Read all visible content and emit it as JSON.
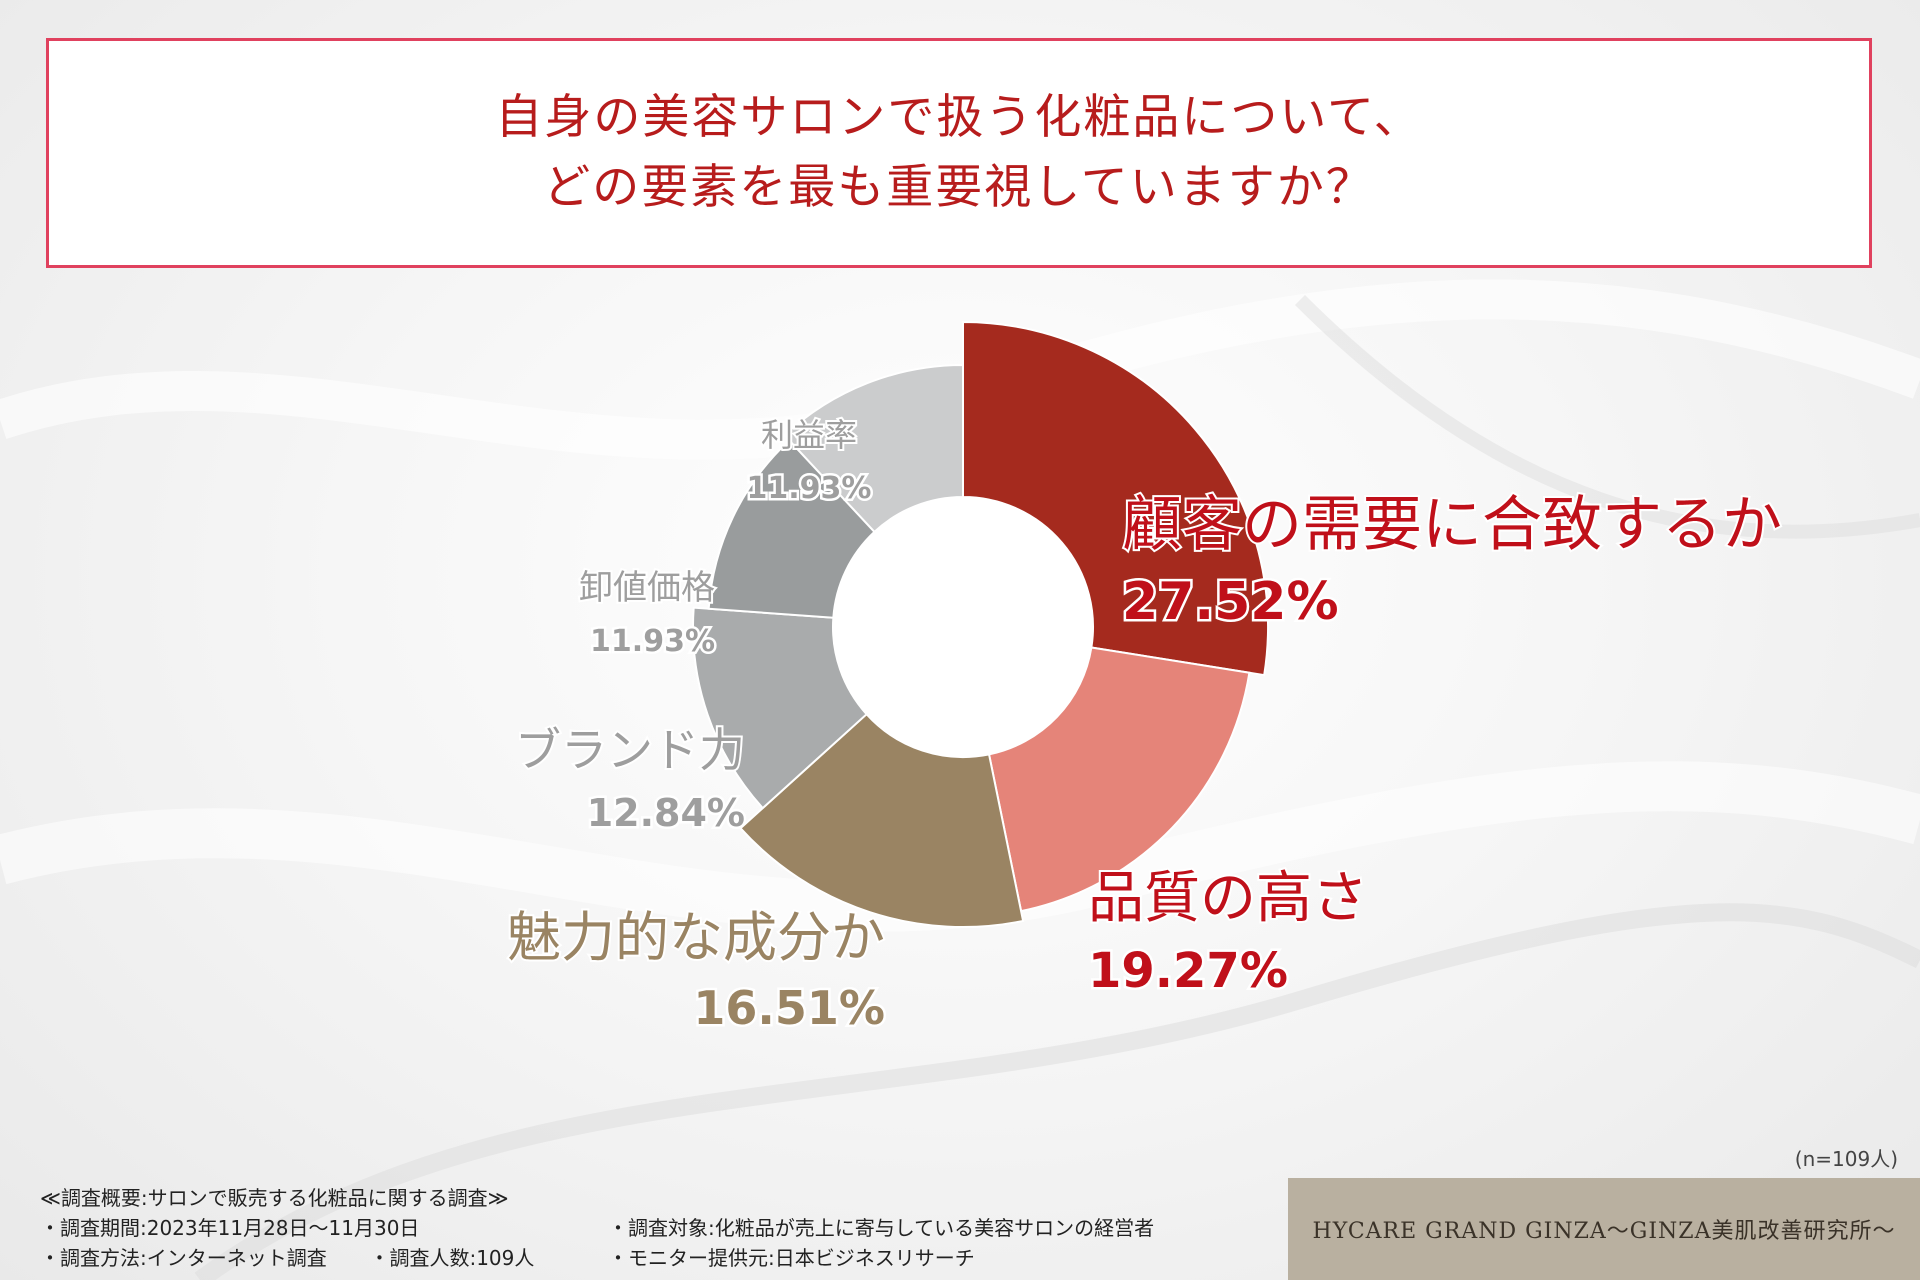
{
  "title": {
    "line1": "自身の美容サロンで扱う化粧品について、",
    "line2": "どの要素を最も重要視していますか？"
  },
  "chart_data": {
    "type": "pie",
    "variant": "donut",
    "unit": "%",
    "slices": [
      {
        "label": "顧客の需要に合致するか",
        "value": 27.52,
        "value_text": "27.52%",
        "color": "#a52a1e",
        "label_color": "#c0101a"
      },
      {
        "label": "品質の高さ",
        "value": 19.27,
        "value_text": "19.27%",
        "color": "#e58479",
        "label_color": "#c0101a"
      },
      {
        "label": "魅力的な成分か",
        "value": 16.51,
        "value_text": "16.51%",
        "color": "#9a8463",
        "label_color": "#9a8463"
      },
      {
        "label": "ブランド力",
        "value": 12.84,
        "value_text": "12.84%",
        "color": "#a9abac",
        "label_color": "#9e9e9e"
      },
      {
        "label": "卸値価格",
        "value": 11.93,
        "value_text": "11.93%",
        "color": "#999c9d",
        "label_color": "#9e9e9e"
      },
      {
        "label": "利益率",
        "value": 11.93,
        "value_text": "11.93%",
        "color": "#cbcccd",
        "label_color": "#9e9e9e"
      }
    ]
  },
  "sample_note": "(n=109人)",
  "survey": {
    "heading": "≪調査概要:サロンで販売する化粧品に関する調査≫",
    "period": "・調査期間:2023年11月28日〜11月30日",
    "method": "・調査方法:インターネット調査",
    "count": "・調査人数:109人",
    "target": "・調査対象:化粧品が売上に寄与している美容サロンの経営者",
    "provider": "・モニター提供元:日本ビジネスリサーチ"
  },
  "brand": "HYCARE GRAND GINZA～GINZA美肌改善研究所～"
}
